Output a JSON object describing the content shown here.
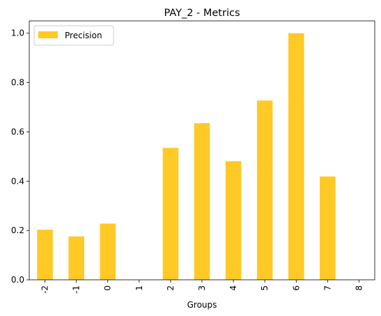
{
  "chart_data": {
    "type": "bar",
    "title": "PAY_2 - Metrics",
    "xlabel": "Groups",
    "ylabel": "",
    "categories": [
      "-2",
      "-1",
      "0",
      "1",
      "2",
      "3",
      "4",
      "5",
      "6",
      "7",
      "8"
    ],
    "series": [
      {
        "name": "Precision",
        "color": "#FFC926",
        "values": [
          0.203,
          0.176,
          0.228,
          0.0,
          0.535,
          0.635,
          0.481,
          0.727,
          1.0,
          0.419,
          0.0
        ]
      }
    ],
    "ylim": [
      0,
      1.05
    ],
    "yticks": [
      0.0,
      0.2,
      0.4,
      0.6,
      0.8,
      1.0
    ],
    "ytick_labels": [
      "0.0",
      "0.2",
      "0.4",
      "0.6",
      "0.8",
      "1.0"
    ],
    "grid": false,
    "legend_position": "top-left"
  }
}
